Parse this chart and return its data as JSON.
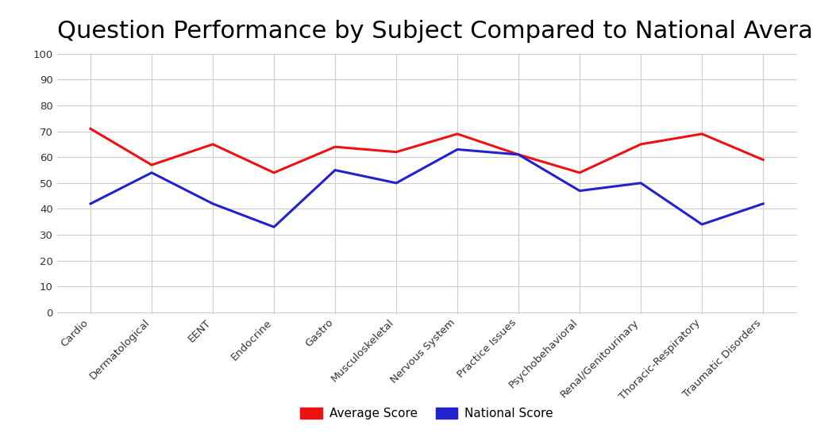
{
  "title": "Question Performance by Subject Compared to National Average",
  "categories": [
    "Cardio",
    "Dermatological",
    "EENT",
    "Endocrine",
    "Gastro",
    "Musculoskeletal",
    "Nervous System",
    "Practice Issues",
    "Psychobehavioral",
    "Renal/Genitourinary",
    "Thoracic-Respiratory",
    "Traumatic Disorders"
  ],
  "average_score": [
    71,
    57,
    65,
    54,
    64,
    62,
    69,
    61,
    54,
    65,
    69,
    59
  ],
  "national_score": [
    42,
    54,
    42,
    33,
    55,
    50,
    63,
    61,
    47,
    50,
    34,
    42
  ],
  "average_score_color": "#ee1111",
  "national_score_color": "#2222cc",
  "background_color": "#ffffff",
  "grid_color": "#cccccc",
  "ylim": [
    0,
    100
  ],
  "yticks": [
    0,
    10,
    20,
    30,
    40,
    50,
    60,
    70,
    80,
    90,
    100
  ],
  "legend_labels": [
    "Average Score",
    "National Score"
  ],
  "title_fontsize": 22,
  "tick_fontsize": 9.5,
  "legend_fontsize": 11,
  "line_width": 2.2
}
